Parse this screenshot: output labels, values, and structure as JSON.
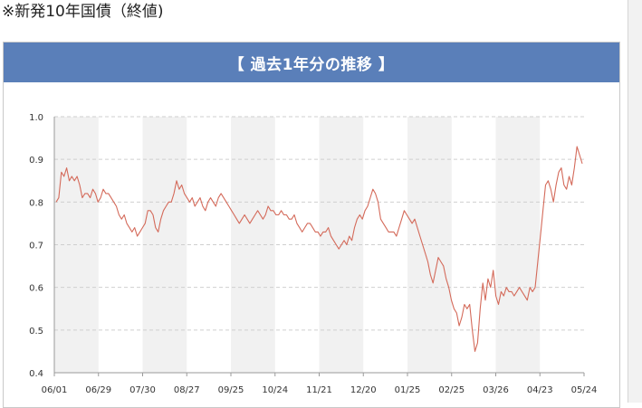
{
  "page": {
    "heading": "※新発10年国債（終値)",
    "panel_title": "【 過去1年分の推移 】"
  },
  "chart_data": {
    "type": "line",
    "title": "【 過去1年分の推移 】",
    "xlabel": "",
    "ylabel": "",
    "ylim": [
      0.4,
      1.0
    ],
    "y_ticks": [
      "0.4",
      "0.5",
      "0.6",
      "0.7",
      "0.8",
      "0.9",
      "1.0"
    ],
    "x_ticks": [
      "06/01",
      "06/29",
      "07/30",
      "08/27",
      "09/25",
      "10/24",
      "11/21",
      "12/20",
      "01/25",
      "02/25",
      "03/26",
      "04/23",
      "05/24"
    ],
    "grid": true,
    "legend": "none",
    "line_color": "#d46a5a",
    "band_color": "#f1f1f1",
    "series": [
      {
        "values": [
          0.8,
          0.81,
          0.87,
          0.86,
          0.88,
          0.85,
          0.86,
          0.85,
          0.86,
          0.84,
          0.81,
          0.82,
          0.82,
          0.81,
          0.83,
          0.82,
          0.8,
          0.81,
          0.83,
          0.82,
          0.82,
          0.81,
          0.8,
          0.79,
          0.77,
          0.76,
          0.77,
          0.75,
          0.74,
          0.73,
          0.74,
          0.72,
          0.73,
          0.74,
          0.75,
          0.78,
          0.78,
          0.77,
          0.74,
          0.73,
          0.76,
          0.78,
          0.79,
          0.8,
          0.8,
          0.82,
          0.85,
          0.83,
          0.84,
          0.82,
          0.81,
          0.8,
          0.81,
          0.79,
          0.8,
          0.81,
          0.79,
          0.78,
          0.8,
          0.81,
          0.8,
          0.79,
          0.81,
          0.82,
          0.81,
          0.8,
          0.79,
          0.78,
          0.77,
          0.76,
          0.75,
          0.76,
          0.77,
          0.76,
          0.75,
          0.76,
          0.77,
          0.78,
          0.77,
          0.76,
          0.77,
          0.79,
          0.78,
          0.78,
          0.77,
          0.77,
          0.78,
          0.77,
          0.77,
          0.76,
          0.76,
          0.77,
          0.75,
          0.74,
          0.73,
          0.74,
          0.75,
          0.75,
          0.74,
          0.73,
          0.73,
          0.72,
          0.73,
          0.73,
          0.74,
          0.72,
          0.71,
          0.7,
          0.69,
          0.7,
          0.71,
          0.7,
          0.72,
          0.71,
          0.74,
          0.76,
          0.77,
          0.76,
          0.78,
          0.79,
          0.81,
          0.83,
          0.82,
          0.8,
          0.76,
          0.75,
          0.74,
          0.73,
          0.73,
          0.73,
          0.72,
          0.74,
          0.76,
          0.78,
          0.77,
          0.76,
          0.75,
          0.76,
          0.74,
          0.72,
          0.7,
          0.68,
          0.66,
          0.63,
          0.61,
          0.64,
          0.67,
          0.66,
          0.65,
          0.62,
          0.6,
          0.57,
          0.55,
          0.54,
          0.51,
          0.53,
          0.56,
          0.55,
          0.56,
          0.5,
          0.45,
          0.47,
          0.55,
          0.61,
          0.57,
          0.62,
          0.6,
          0.64,
          0.58,
          0.56,
          0.59,
          0.58,
          0.6,
          0.59,
          0.59,
          0.58,
          0.59,
          0.6,
          0.59,
          0.58,
          0.57,
          0.6,
          0.59,
          0.6,
          0.66,
          0.72,
          0.78,
          0.84,
          0.85,
          0.83,
          0.8,
          0.84,
          0.87,
          0.88,
          0.84,
          0.83,
          0.86,
          0.84,
          0.88,
          0.93,
          0.91,
          0.89
        ]
      }
    ]
  }
}
